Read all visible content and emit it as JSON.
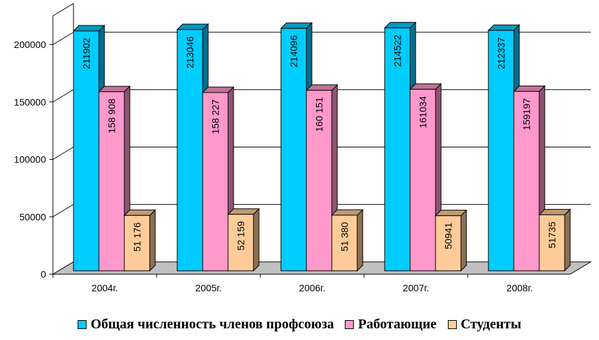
{
  "chart_data": {
    "type": "bar",
    "categories": [
      "2004г.",
      "2005г.",
      "2006г.",
      "2007г.",
      "2008г."
    ],
    "series": [
      {
        "name": "Общая численность членов профсоюза",
        "values": [
          211902,
          213046,
          214096,
          214522,
          212337
        ],
        "labels": [
          "211902",
          "213046",
          "214096",
          "214522",
          "212337"
        ],
        "color": "#00CCFF"
      },
      {
        "name": "Работающие",
        "values": [
          158908,
          158227,
          160151,
          161034,
          159197
        ],
        "labels": [
          "158 908",
          "158 227",
          "160 151",
          "161034",
          "159197"
        ],
        "color": "#FF99CC"
      },
      {
        "name": "Студенты",
        "values": [
          51176,
          52159,
          51380,
          50941,
          51735
        ],
        "labels": [
          "51 176",
          "52 159",
          "51 380",
          "50941",
          "51735"
        ],
        "color": "#FFCC99"
      }
    ],
    "y_ticks": [
      0,
      50000,
      100000,
      150000,
      200000
    ],
    "y_tick_labels": [
      "0",
      "50000",
      "100000",
      "150000",
      "200000"
    ],
    "ylim": [
      0,
      225000
    ],
    "grid": true,
    "three_d": true,
    "legend_position": "bottom"
  }
}
